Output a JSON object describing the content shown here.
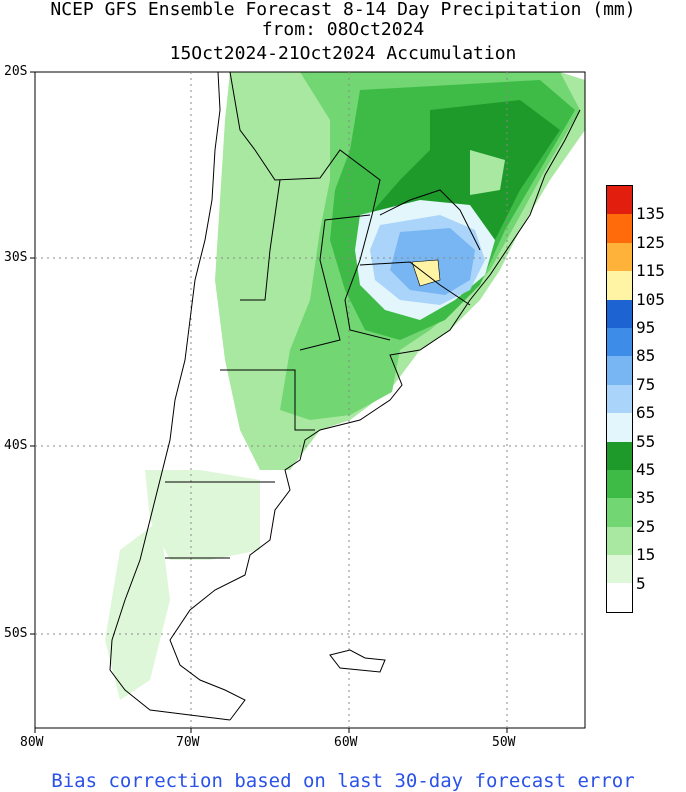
{
  "title": {
    "line1": "NCEP GFS Ensemble Forecast 8-14 Day Precipitation (mm)",
    "line2": "from: 08Oct2024",
    "line3": "15Oct2024-21Oct2024 Accumulation"
  },
  "axes": {
    "lat_labels": [
      "20S",
      "30S",
      "40S",
      "50S"
    ],
    "lon_labels": [
      "80W",
      "70W",
      "60W",
      "50W"
    ]
  },
  "legend": {
    "labels": [
      "135",
      "125",
      "115",
      "105",
      "95",
      "85",
      "75",
      "65",
      "55",
      "45",
      "35",
      "25",
      "15",
      "5"
    ],
    "colors": [
      "#e21f0e",
      "#ff6a0a",
      "#ffb23a",
      "#fff4a4",
      "#1e63d2",
      "#3d8ce8",
      "#77b6f2",
      "#aad4fa",
      "#e2f6fb",
      "#1e9a2a",
      "#3dbb46",
      "#72d672",
      "#a9e8a0",
      "#def7d8",
      "#ffffff"
    ]
  },
  "footer": "Bias correction based on last 30-day forecast error"
}
